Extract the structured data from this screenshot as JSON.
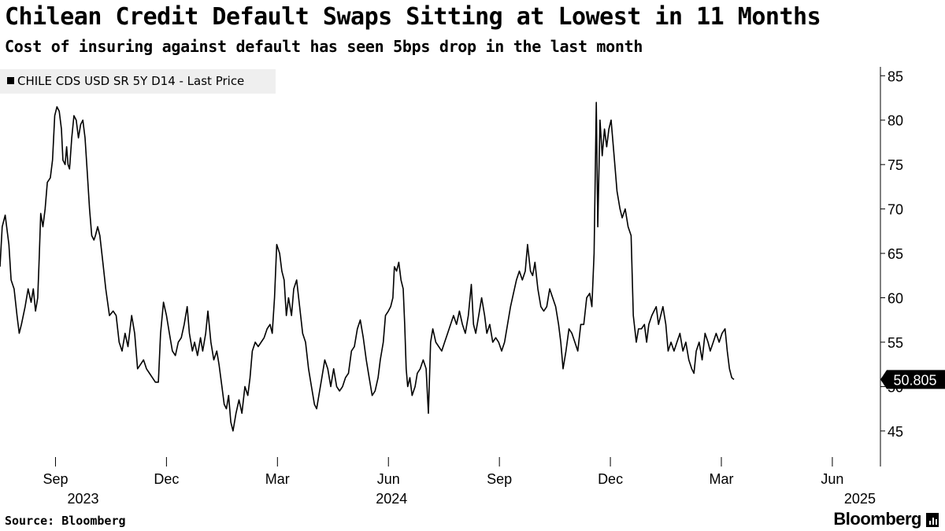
{
  "title": "Chilean Credit Default Swaps Sitting at Lowest in 11 Months",
  "subtitle": "Cost of insuring against default has seen 5bps drop in the last month",
  "legend_label": "CHILE CDS USD SR 5Y D14 - Last Price",
  "source": "Source: Bloomberg",
  "brand": "Bloomberg",
  "chart_data": {
    "type": "line",
    "title": "Chilean Credit Default Swaps Sitting at Lowest in 11 Months",
    "xlabel": "",
    "ylabel": "",
    "ylim": [
      41,
      86
    ],
    "yticks": [
      45,
      50,
      55,
      60,
      65,
      70,
      75,
      80,
      85
    ],
    "y_axis_side": "right",
    "grid": false,
    "legend_position": "top-left",
    "last_value_label": "50.805",
    "x_ticks": [
      {
        "label": "Sep",
        "year": "2023",
        "t": 2
      },
      {
        "label": "Dec",
        "year": "",
        "t": 5
      },
      {
        "label": "Mar",
        "year": "",
        "t": 8
      },
      {
        "label": "Jun",
        "year": "2024",
        "t": 11
      },
      {
        "label": "Sep",
        "year": "",
        "t": 14
      },
      {
        "label": "Dec",
        "year": "",
        "t": 17
      },
      {
        "label": "Mar",
        "year": "",
        "t": 20
      },
      {
        "label": "Jun",
        "year": "2025",
        "t": 23
      }
    ],
    "xlim": [
      0.5,
      24.3
    ],
    "series": [
      {
        "name": "CHILE CDS USD SR 5Y D14 - Last Price",
        "points": [
          [
            0.5,
            63.5
          ],
          [
            0.56,
            68
          ],
          [
            0.64,
            69.3
          ],
          [
            0.74,
            66
          ],
          [
            0.8,
            62
          ],
          [
            0.88,
            61
          ],
          [
            0.96,
            58
          ],
          [
            1.02,
            56
          ],
          [
            1.08,
            57
          ],
          [
            1.18,
            59
          ],
          [
            1.26,
            61
          ],
          [
            1.34,
            59.5
          ],
          [
            1.4,
            61
          ],
          [
            1.46,
            58.5
          ],
          [
            1.52,
            60
          ],
          [
            1.56,
            64.5
          ],
          [
            1.6,
            69.5
          ],
          [
            1.66,
            68
          ],
          [
            1.72,
            70
          ],
          [
            1.78,
            73
          ],
          [
            1.86,
            73.5
          ],
          [
            1.92,
            75.5
          ],
          [
            1.98,
            80.5
          ],
          [
            2.04,
            81.5
          ],
          [
            2.1,
            81
          ],
          [
            2.16,
            79
          ],
          [
            2.2,
            75.5
          ],
          [
            2.26,
            75
          ],
          [
            2.3,
            77
          ],
          [
            2.34,
            75
          ],
          [
            2.38,
            74.5
          ],
          [
            2.44,
            78
          ],
          [
            2.5,
            80.5
          ],
          [
            2.56,
            80
          ],
          [
            2.62,
            78
          ],
          [
            2.68,
            79.5
          ],
          [
            2.74,
            80
          ],
          [
            2.8,
            78
          ],
          [
            2.86,
            74
          ],
          [
            2.92,
            70
          ],
          [
            2.98,
            67
          ],
          [
            3.04,
            66.5
          ],
          [
            3.08,
            67
          ],
          [
            3.14,
            68
          ],
          [
            3.2,
            67
          ],
          [
            3.28,
            64
          ],
          [
            3.36,
            61
          ],
          [
            3.46,
            58
          ],
          [
            3.56,
            58.5
          ],
          [
            3.64,
            58
          ],
          [
            3.72,
            55
          ],
          [
            3.8,
            54
          ],
          [
            3.88,
            56
          ],
          [
            3.96,
            54.5
          ],
          [
            4.06,
            58
          ],
          [
            4.14,
            56
          ],
          [
            4.22,
            52
          ],
          [
            4.3,
            52.5
          ],
          [
            4.38,
            53
          ],
          [
            4.46,
            52
          ],
          [
            4.54,
            51.5
          ],
          [
            4.62,
            51
          ],
          [
            4.7,
            50.5
          ],
          [
            4.78,
            50.5
          ],
          [
            4.84,
            56
          ],
          [
            4.92,
            59.5
          ],
          [
            5.0,
            58
          ],
          [
            5.08,
            56
          ],
          [
            5.16,
            54
          ],
          [
            5.24,
            53.5
          ],
          [
            5.32,
            55
          ],
          [
            5.4,
            55.5
          ],
          [
            5.48,
            57
          ],
          [
            5.56,
            59
          ],
          [
            5.62,
            56
          ],
          [
            5.7,
            54
          ],
          [
            5.76,
            55
          ],
          [
            5.84,
            53.5
          ],
          [
            5.92,
            55.5
          ],
          [
            5.98,
            54
          ],
          [
            6.06,
            56
          ],
          [
            6.12,
            58.5
          ],
          [
            6.2,
            55
          ],
          [
            6.28,
            53
          ],
          [
            6.36,
            54
          ],
          [
            6.42,
            52.5
          ],
          [
            6.5,
            50
          ],
          [
            6.56,
            48
          ],
          [
            6.62,
            47.5
          ],
          [
            6.68,
            49
          ],
          [
            6.74,
            46
          ],
          [
            6.8,
            45
          ],
          [
            6.88,
            47
          ],
          [
            6.96,
            48.5
          ],
          [
            7.04,
            47
          ],
          [
            7.12,
            50
          ],
          [
            7.2,
            49
          ],
          [
            7.26,
            51
          ],
          [
            7.32,
            54
          ],
          [
            7.4,
            55
          ],
          [
            7.48,
            54.5
          ],
          [
            7.56,
            55
          ],
          [
            7.64,
            55.5
          ],
          [
            7.72,
            56.5
          ],
          [
            7.8,
            57
          ],
          [
            7.86,
            56
          ],
          [
            7.92,
            60
          ],
          [
            7.98,
            66
          ],
          [
            8.06,
            65
          ],
          [
            8.12,
            63
          ],
          [
            8.18,
            62
          ],
          [
            8.24,
            58
          ],
          [
            8.3,
            60
          ],
          [
            8.38,
            58
          ],
          [
            8.44,
            61
          ],
          [
            8.52,
            62
          ],
          [
            8.6,
            59
          ],
          [
            8.68,
            56
          ],
          [
            8.76,
            55
          ],
          [
            8.84,
            52
          ],
          [
            8.92,
            50
          ],
          [
            9.0,
            48
          ],
          [
            9.06,
            47.5
          ],
          [
            9.12,
            49
          ],
          [
            9.2,
            51
          ],
          [
            9.28,
            53
          ],
          [
            9.36,
            52
          ],
          [
            9.44,
            50
          ],
          [
            9.52,
            52
          ],
          [
            9.6,
            50
          ],
          [
            9.68,
            49.5
          ],
          [
            9.76,
            50
          ],
          [
            9.84,
            51
          ],
          [
            9.92,
            51.5
          ],
          [
            10.0,
            54
          ],
          [
            10.08,
            54.5
          ],
          [
            10.16,
            56.5
          ],
          [
            10.24,
            57.5
          ],
          [
            10.32,
            55.5
          ],
          [
            10.4,
            53
          ],
          [
            10.48,
            51
          ],
          [
            10.56,
            49
          ],
          [
            10.64,
            49.5
          ],
          [
            10.72,
            51
          ],
          [
            10.78,
            53
          ],
          [
            10.86,
            55
          ],
          [
            10.92,
            58
          ],
          [
            11.0,
            58.5
          ],
          [
            11.06,
            59
          ],
          [
            11.12,
            60
          ],
          [
            11.16,
            63.5
          ],
          [
            11.22,
            63
          ],
          [
            11.28,
            64
          ],
          [
            11.34,
            62
          ],
          [
            11.4,
            61
          ],
          [
            11.44,
            57
          ],
          [
            11.48,
            52
          ],
          [
            11.52,
            50
          ],
          [
            11.58,
            51
          ],
          [
            11.64,
            49
          ],
          [
            11.72,
            50
          ],
          [
            11.78,
            51.5
          ],
          [
            11.86,
            52
          ],
          [
            11.94,
            53
          ],
          [
            12.02,
            52
          ],
          [
            12.08,
            47
          ],
          [
            12.14,
            55
          ],
          [
            12.2,
            56.5
          ],
          [
            12.28,
            55
          ],
          [
            12.36,
            54.5
          ],
          [
            12.44,
            54
          ],
          [
            12.52,
            55
          ],
          [
            12.6,
            56
          ],
          [
            12.68,
            57
          ],
          [
            12.76,
            58
          ],
          [
            12.84,
            57
          ],
          [
            12.92,
            58.5
          ],
          [
            13.0,
            57
          ],
          [
            13.08,
            56
          ],
          [
            13.16,
            58
          ],
          [
            13.24,
            61.5
          ],
          [
            13.3,
            57
          ],
          [
            13.36,
            56
          ],
          [
            13.44,
            58
          ],
          [
            13.52,
            60
          ],
          [
            13.6,
            58
          ],
          [
            13.66,
            56
          ],
          [
            13.74,
            57
          ],
          [
            13.82,
            55
          ],
          [
            13.9,
            55.5
          ],
          [
            13.98,
            55
          ],
          [
            14.06,
            54
          ],
          [
            14.14,
            55
          ],
          [
            14.22,
            57
          ],
          [
            14.3,
            59
          ],
          [
            14.38,
            60.5
          ],
          [
            14.46,
            62
          ],
          [
            14.54,
            63
          ],
          [
            14.62,
            62
          ],
          [
            14.7,
            63
          ],
          [
            14.76,
            66
          ],
          [
            14.84,
            63
          ],
          [
            14.9,
            62.5
          ],
          [
            14.96,
            64
          ],
          [
            15.04,
            61
          ],
          [
            15.12,
            59
          ],
          [
            15.2,
            58.5
          ],
          [
            15.28,
            59
          ],
          [
            15.36,
            61
          ],
          [
            15.44,
            60
          ],
          [
            15.52,
            59
          ],
          [
            15.6,
            57
          ],
          [
            15.66,
            55
          ],
          [
            15.72,
            52
          ],
          [
            15.8,
            54
          ],
          [
            15.88,
            56.5
          ],
          [
            15.96,
            56
          ],
          [
            16.04,
            55
          ],
          [
            16.12,
            54
          ],
          [
            16.2,
            57
          ],
          [
            16.28,
            57
          ],
          [
            16.36,
            60
          ],
          [
            16.44,
            60.5
          ],
          [
            16.5,
            59
          ],
          [
            16.56,
            65
          ],
          [
            16.62,
            82
          ],
          [
            16.66,
            68
          ],
          [
            16.72,
            80
          ],
          [
            16.78,
            76
          ],
          [
            16.84,
            79
          ],
          [
            16.9,
            77
          ],
          [
            16.96,
            79
          ],
          [
            17.02,
            80
          ],
          [
            17.1,
            76
          ],
          [
            17.18,
            72
          ],
          [
            17.26,
            70
          ],
          [
            17.32,
            69
          ],
          [
            17.4,
            70
          ],
          [
            17.48,
            68
          ],
          [
            17.56,
            67
          ],
          [
            17.62,
            58
          ],
          [
            17.7,
            55
          ],
          [
            17.76,
            56.5
          ],
          [
            17.84,
            56.5
          ],
          [
            17.92,
            57
          ],
          [
            17.98,
            55
          ],
          [
            18.04,
            57
          ],
          [
            18.12,
            58
          ],
          [
            18.18,
            58.5
          ],
          [
            18.24,
            59
          ],
          [
            18.3,
            57
          ],
          [
            18.36,
            58
          ],
          [
            18.42,
            59
          ],
          [
            18.5,
            57
          ],
          [
            18.56,
            54
          ],
          [
            18.64,
            55
          ],
          [
            18.72,
            54
          ],
          [
            18.8,
            55
          ],
          [
            18.88,
            56
          ],
          [
            18.96,
            54
          ],
          [
            19.04,
            55
          ],
          [
            19.12,
            53
          ],
          [
            19.2,
            52
          ],
          [
            19.26,
            51.5
          ],
          [
            19.32,
            54
          ],
          [
            19.4,
            55
          ],
          [
            19.48,
            53
          ],
          [
            19.56,
            56
          ],
          [
            19.64,
            55
          ],
          [
            19.7,
            54
          ],
          [
            19.78,
            55
          ],
          [
            19.86,
            56
          ],
          [
            19.94,
            55
          ],
          [
            20.02,
            56
          ],
          [
            20.1,
            56.5
          ],
          [
            20.16,
            54
          ],
          [
            20.22,
            52
          ],
          [
            20.28,
            51
          ],
          [
            20.34,
            50.8
          ]
        ]
      }
    ]
  }
}
